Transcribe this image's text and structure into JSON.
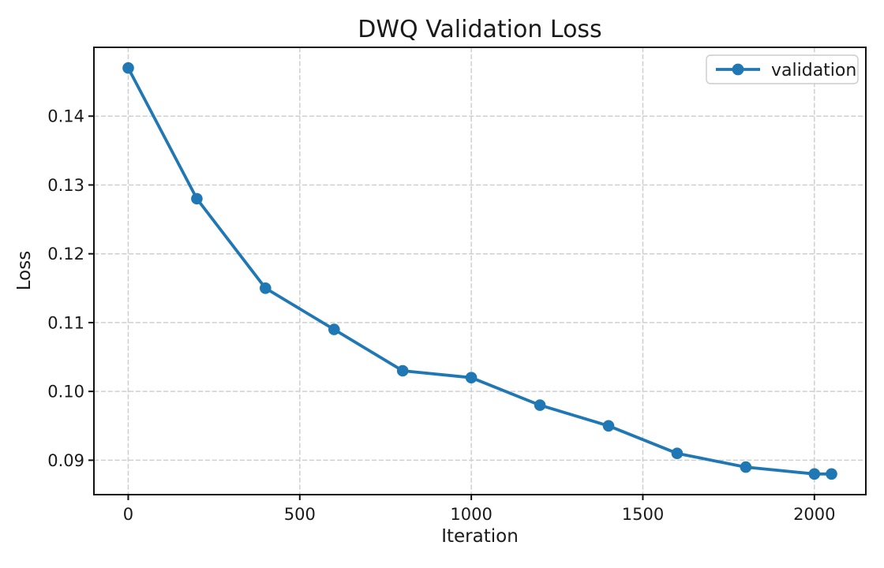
{
  "chart_data": {
    "type": "line",
    "title": "DWQ Validation Loss",
    "xlabel": "Iteration",
    "ylabel": "Loss",
    "grid": true,
    "legend_position": "upper right",
    "xlim": [
      -100,
      2150
    ],
    "ylim": [
      0.085,
      0.15
    ],
    "x_tick_values": [
      0,
      500,
      1000,
      1500,
      2000
    ],
    "x_tick_labels": [
      "0",
      "500",
      "1000",
      "1500",
      "2000"
    ],
    "y_tick_values": [
      0.09,
      0.1,
      0.11,
      0.12,
      0.13,
      0.14
    ],
    "y_tick_labels": [
      "0.09",
      "0.10",
      "0.11",
      "0.12",
      "0.13",
      "0.14"
    ],
    "series": [
      {
        "name": "validation",
        "color": "#1f77b4",
        "marker": "circle",
        "x": [
          0,
          200,
          400,
          600,
          800,
          1000,
          1200,
          1400,
          1600,
          1800,
          2000,
          2050
        ],
        "y": [
          0.147,
          0.128,
          0.115,
          0.109,
          0.103,
          0.102,
          0.098,
          0.095,
          0.091,
          0.089,
          0.088,
          0.088
        ]
      }
    ]
  },
  "colors": {
    "accent": "#1f77b4",
    "grid": "#cfcfcf",
    "frame": "#111111",
    "text": "#1a1a1a",
    "legend_border": "#cccccc",
    "background": "#ffffff"
  }
}
